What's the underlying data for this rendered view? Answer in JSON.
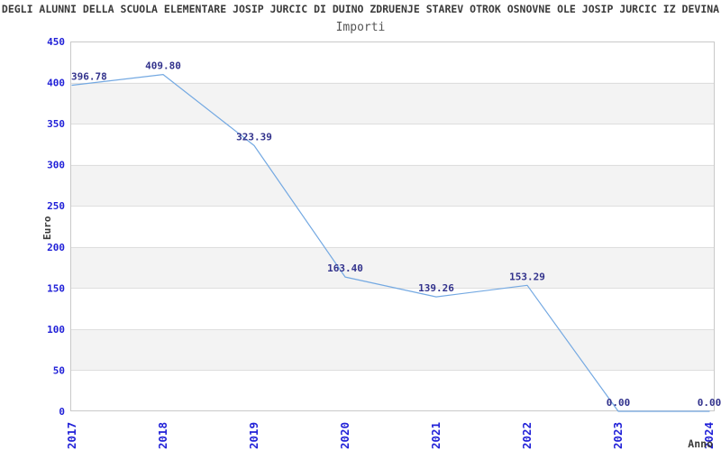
{
  "header": {
    "title": "DEGLI ALUNNI DELLA SCUOLA ELEMENTARE JOSIP JURCIC DI DUINO ZDRUENJE STAREV OTROK OSNOVNE OLE JOSIP JURCIC IZ DEVINA",
    "subtitle": "Importi"
  },
  "chart_data": {
    "type": "line",
    "title": "Importi",
    "xlabel": "Anno",
    "ylabel": "Euro",
    "x_categories": [
      "2017",
      "2018",
      "2019",
      "2020",
      "2021",
      "2022",
      "2023",
      "2024"
    ],
    "values": [
      396.78,
      409.8,
      323.39,
      163.4,
      139.26,
      153.29,
      0.0,
      0.0
    ],
    "point_labels": [
      "396.78",
      "409.80",
      "323.39",
      "163.40",
      "139.26",
      "153.29",
      "0.00",
      "0.00"
    ],
    "ylim": [
      0,
      450
    ],
    "ytick_step": 50,
    "yticks": [
      0,
      50,
      100,
      150,
      200,
      250,
      300,
      350,
      400,
      450
    ],
    "grid": "alternating horizontal bands with gridlines every 50",
    "legend": "none",
    "colors": {
      "line": "#74a9e2",
      "tick_label": "#2121d8",
      "point_label": "#32328c",
      "band": "#f3f3f3",
      "gridline": "#dedede",
      "plot_border": "#c9c9c9",
      "axis_title": "#3a3a3a"
    }
  }
}
